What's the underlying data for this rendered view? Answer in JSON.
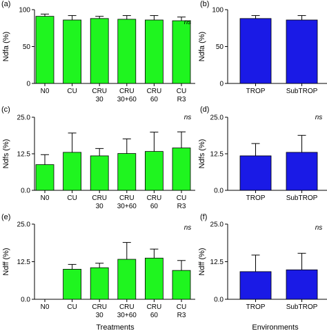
{
  "colors": {
    "treatments_bar": "#1ff51f",
    "environments_bar": "#1a1ae6",
    "axis": "#000000"
  },
  "footer": {
    "left": "Treatments",
    "right": "Environments"
  },
  "chart_data": [
    {
      "panel": "(a)",
      "type": "bar",
      "color": "treatments",
      "categories": [
        "N0",
        "CU",
        "CRU\n30",
        "CRU\n30+60",
        "CRU\n60",
        "CU\nR3"
      ],
      "values": [
        91,
        86,
        88,
        87,
        86,
        85
      ],
      "errors": [
        3,
        6,
        3,
        5,
        6,
        5
      ],
      "ylabel": "Ndfa (%)",
      "ylim": [
        0,
        100
      ],
      "yticks": [
        "0",
        "50",
        "100"
      ],
      "annotation": "ns"
    },
    {
      "panel": "(b)",
      "type": "bar",
      "color": "environments",
      "categories": [
        "TROP",
        "SubTROP"
      ],
      "values": [
        88,
        86
      ],
      "errors": [
        4,
        6
      ],
      "ylabel": "Ndfa (%)",
      "ylim": [
        0,
        100
      ],
      "yticks": [
        "0",
        "50",
        "100"
      ],
      "annotation": ""
    },
    {
      "panel": "(c)",
      "type": "bar",
      "color": "treatments",
      "categories": [
        "N0",
        "CU",
        "CRU\n30",
        "CRU\n30+60",
        "CRU\n60",
        "CU\nR3"
      ],
      "values": [
        8.8,
        13.0,
        11.8,
        12.6,
        13.3,
        14.5
      ],
      "errors": [
        3.4,
        6.6,
        2.5,
        5.0,
        6.6,
        5.5
      ],
      "ylabel": "Ndfs (%)",
      "ylim": [
        0,
        25
      ],
      "yticks": [
        "0.0",
        "12.5",
        "25.0"
      ],
      "annotation": "ns"
    },
    {
      "panel": "(d)",
      "type": "bar",
      "color": "environments",
      "categories": [
        "TROP",
        "SubTROP"
      ],
      "values": [
        11.8,
        13.0
      ],
      "errors": [
        4.2,
        5.8
      ],
      "ylabel": "Ndfs (%)",
      "ylim": [
        0,
        25
      ],
      "yticks": [
        "0.0",
        "12.5",
        "25.0"
      ],
      "annotation": "ns"
    },
    {
      "panel": "(e)",
      "type": "bar",
      "color": "treatments",
      "categories": [
        "N0",
        "CU",
        "CRU\n30",
        "CRU\n30+60",
        "CRU\n60",
        "CU\nR3"
      ],
      "values": [
        0,
        10.0,
        10.5,
        13.3,
        13.7,
        9.6
      ],
      "errors": [
        0,
        1.6,
        1.5,
        5.6,
        3.0,
        3.3
      ],
      "ylabel": "Ndff (%)",
      "ylim": [
        0,
        25
      ],
      "yticks": [
        "0.0",
        "12.5",
        "25.0"
      ],
      "annotation": "ns"
    },
    {
      "panel": "(f)",
      "type": "bar",
      "color": "environments",
      "categories": [
        "TROP",
        "SubTROP"
      ],
      "values": [
        9.2,
        9.8
      ],
      "errors": [
        5.5,
        5.5
      ],
      "ylabel": "Ndff (%)",
      "ylim": [
        0,
        25
      ],
      "yticks": [
        "0.0",
        "12.5",
        "25.0"
      ],
      "annotation": "ns"
    }
  ]
}
